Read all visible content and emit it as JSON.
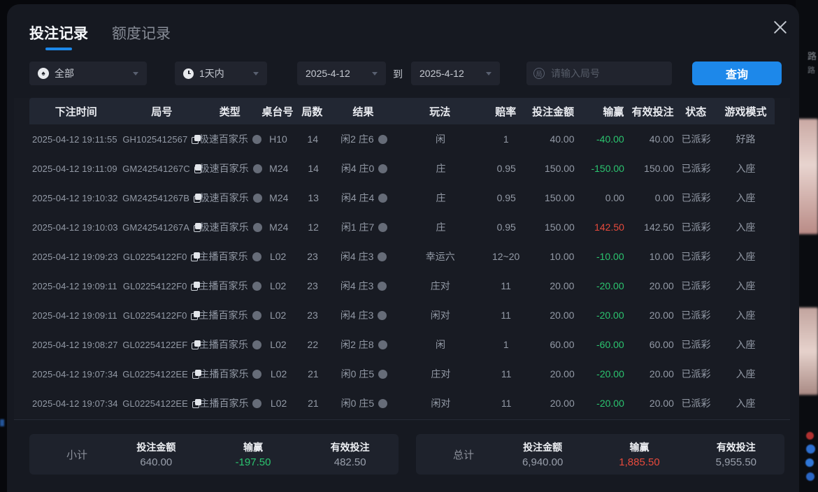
{
  "tabs": [
    {
      "label": "投注记录",
      "active": true
    },
    {
      "label": "额度记录",
      "active": false
    }
  ],
  "filters": {
    "category_value": "全部",
    "range_value": "1天内",
    "date_from": "2025-4-12",
    "to_label": "到",
    "date_to": "2025-4-12",
    "search_placeholder": "请输入局号",
    "query_button": "查询"
  },
  "icons": {
    "all_types_icon_glyph": "♠",
    "round_number_icon_glyph": "局",
    "close": "x-cross",
    "chevron": "caret-down",
    "clock": "clock-face",
    "copy": "copy-squares",
    "type_info": "gray-dot",
    "result_detail": "gray-dot"
  },
  "background": {
    "partial_text": "路",
    "partial_text2": "路"
  },
  "table": {
    "headers": [
      "下注时间",
      "局号",
      "类型",
      "桌台号",
      "局数",
      "结果",
      "玩法",
      "赔率",
      "投注金额",
      "输赢",
      "有效投注",
      "状态",
      "游戏模式"
    ],
    "rows": [
      {
        "time": "2025-04-12 19:11:55",
        "game_id": "GH1025412567",
        "type": "极速百家乐",
        "table_no": "H10",
        "rounds": "14",
        "result": "闲2 庄6",
        "play": "闲",
        "odds": "1",
        "bet": "40.00",
        "win": "-40.00",
        "win_color": "green",
        "valid": "40.00",
        "status": "已派彩",
        "mode": "好路"
      },
      {
        "time": "2025-04-12 19:11:09",
        "game_id": "GM242541267C",
        "type": "极速百家乐",
        "table_no": "M24",
        "rounds": "14",
        "result": "闲4 庄0",
        "play": "庄",
        "odds": "0.95",
        "bet": "150.00",
        "win": "-150.00",
        "win_color": "green",
        "valid": "150.00",
        "status": "已派彩",
        "mode": "入座"
      },
      {
        "time": "2025-04-12 19:10:32",
        "game_id": "GM242541267B",
        "type": "极速百家乐",
        "table_no": "M24",
        "rounds": "13",
        "result": "闲4 庄4",
        "play": "庄",
        "odds": "0.95",
        "bet": "150.00",
        "win": "0.00",
        "win_color": "plain",
        "valid": "0.00",
        "status": "已派彩",
        "mode": "入座"
      },
      {
        "time": "2025-04-12 19:10:03",
        "game_id": "GM242541267A",
        "type": "极速百家乐",
        "table_no": "M24",
        "rounds": "12",
        "result": "闲1 庄7",
        "play": "庄",
        "odds": "0.95",
        "bet": "150.00",
        "win": "142.50",
        "win_color": "red",
        "valid": "142.50",
        "status": "已派彩",
        "mode": "入座"
      },
      {
        "time": "2025-04-12 19:09:23",
        "game_id": "GL02254122F0",
        "type": "主播百家乐",
        "table_no": "L02",
        "rounds": "23",
        "result": "闲4 庄3",
        "play": "幸运六",
        "odds": "12~20",
        "bet": "10.00",
        "win": "-10.00",
        "win_color": "green",
        "valid": "10.00",
        "status": "已派彩",
        "mode": "入座"
      },
      {
        "time": "2025-04-12 19:09:11",
        "game_id": "GL02254122F0",
        "type": "主播百家乐",
        "table_no": "L02",
        "rounds": "23",
        "result": "闲4 庄3",
        "play": "庄对",
        "odds": "11",
        "bet": "20.00",
        "win": "-20.00",
        "win_color": "green",
        "valid": "20.00",
        "status": "已派彩",
        "mode": "入座"
      },
      {
        "time": "2025-04-12 19:09:11",
        "game_id": "GL02254122F0",
        "type": "主播百家乐",
        "table_no": "L02",
        "rounds": "23",
        "result": "闲4 庄3",
        "play": "闲对",
        "odds": "11",
        "bet": "20.00",
        "win": "-20.00",
        "win_color": "green",
        "valid": "20.00",
        "status": "已派彩",
        "mode": "入座"
      },
      {
        "time": "2025-04-12 19:08:27",
        "game_id": "GL02254122EF",
        "type": "主播百家乐",
        "table_no": "L02",
        "rounds": "22",
        "result": "闲2 庄8",
        "play": "闲",
        "odds": "1",
        "bet": "60.00",
        "win": "-60.00",
        "win_color": "green",
        "valid": "60.00",
        "status": "已派彩",
        "mode": "入座"
      },
      {
        "time": "2025-04-12 19:07:34",
        "game_id": "GL02254122EE",
        "type": "主播百家乐",
        "table_no": "L02",
        "rounds": "21",
        "result": "闲0 庄5",
        "play": "庄对",
        "odds": "11",
        "bet": "20.00",
        "win": "-20.00",
        "win_color": "green",
        "valid": "20.00",
        "status": "已派彩",
        "mode": "入座"
      },
      {
        "time": "2025-04-12 19:07:34",
        "game_id": "GL02254122EE",
        "type": "主播百家乐",
        "table_no": "L02",
        "rounds": "21",
        "result": "闲0 庄5",
        "play": "闲对",
        "odds": "11",
        "bet": "20.00",
        "win": "-20.00",
        "win_color": "green",
        "valid": "20.00",
        "status": "已派彩",
        "mode": "入座"
      }
    ]
  },
  "summary": {
    "subtotal": {
      "label": "小计",
      "groups": [
        {
          "title": "投注金额",
          "value": "640.00",
          "color": "plain"
        },
        {
          "title": "输赢",
          "value": "-197.50",
          "color": "green"
        },
        {
          "title": "有效投注",
          "value": "482.50",
          "color": "plain"
        }
      ]
    },
    "total": {
      "label": "总计",
      "groups": [
        {
          "title": "投注金额",
          "value": "6,940.00",
          "color": "plain"
        },
        {
          "title": "输赢",
          "value": "1,885.50",
          "color": "red"
        },
        {
          "title": "有效投注",
          "value": "5,955.50",
          "color": "plain"
        }
      ]
    }
  },
  "colors": {
    "accent_blue": "#1d88ea",
    "win_green": "#2bc46f",
    "loss_red": "#e64a3c"
  }
}
